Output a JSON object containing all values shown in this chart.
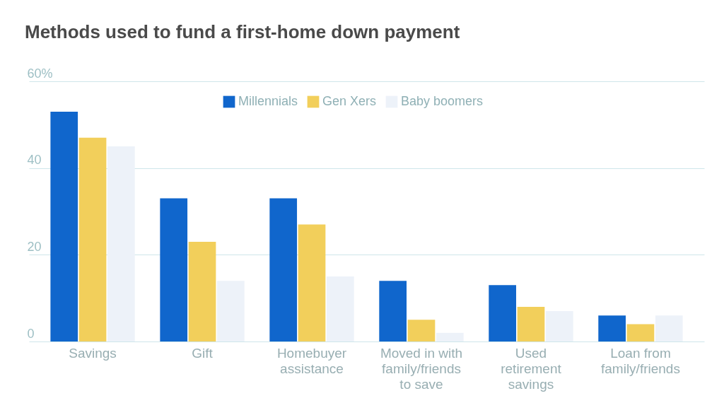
{
  "chart_data": {
    "type": "bar",
    "title": "Methods used to fund a first-home down payment",
    "categories": [
      "Savings",
      "Gift",
      "Homebuyer assistance",
      "Moved in with family/friends to save",
      "Used retirement savings",
      "Loan from family/friends"
    ],
    "series": [
      {
        "name": "Millennials",
        "color": "#1066cc",
        "values": [
          53,
          33,
          33,
          14,
          13,
          6
        ]
      },
      {
        "name": "Gen Xers",
        "color": "#f2cf5b",
        "values": [
          47,
          23,
          27,
          5,
          8,
          4
        ]
      },
      {
        "name": "Baby boomers",
        "color": "#edf2f9",
        "values": [
          45,
          14,
          15,
          2,
          7,
          6
        ]
      }
    ],
    "ylim": [
      0,
      60
    ],
    "yticks": [
      0,
      20,
      40,
      {
        "value": 60,
        "label": "60%"
      }
    ],
    "grid": "y",
    "legend": "top"
  }
}
